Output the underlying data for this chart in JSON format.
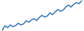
{
  "line_color": "#3a7abf",
  "background_color": "#ffffff",
  "linewidth": 1.2,
  "y_values": [
    0.5,
    1.8,
    1.2,
    2.0,
    1.5,
    1.8,
    2.5,
    2.0,
    2.3,
    3.2,
    2.8,
    3.5,
    3.8,
    3.3,
    4.2,
    4.8,
    4.3,
    4.6,
    5.5,
    5.0,
    5.8,
    6.5,
    6.0,
    6.3,
    7.2,
    7.8,
    7.2,
    8.0,
    8.5,
    8.2,
    9.0
  ]
}
